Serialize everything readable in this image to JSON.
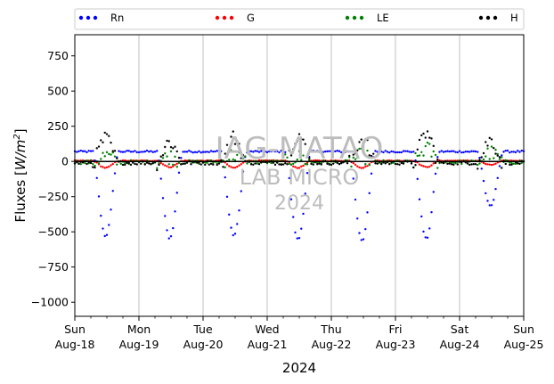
{
  "chart_data": {
    "type": "scatter",
    "xlabel": "2024",
    "ylabel": "Fluxes [W/m²]",
    "ylabel_base": "Fluxes [",
    "ylabel_unit": "W/m",
    "ylabel_exp": "2",
    "ylabel_end": "]",
    "ylim": [
      -1100,
      900
    ],
    "xlim_days": [
      0,
      7
    ],
    "yticks": [
      -1000,
      -750,
      -500,
      -250,
      0,
      250,
      500,
      750
    ],
    "ytick_labels": [
      "−1000",
      "−750",
      "−500",
      "−250",
      "0",
      "250",
      "500",
      "750"
    ],
    "xticks": [
      {
        "day": "Sun",
        "date": "Aug-18"
      },
      {
        "day": "Mon",
        "date": "Aug-19"
      },
      {
        "day": "Tue",
        "date": "Aug-20"
      },
      {
        "day": "Wed",
        "date": "Aug-21"
      },
      {
        "day": "Thu",
        "date": "Aug-22"
      },
      {
        "day": "Fri",
        "date": "Aug-23"
      },
      {
        "day": "Sat",
        "date": "Aug-24"
      },
      {
        "day": "Sun",
        "date": "Aug-25"
      }
    ],
    "grid": "vertical",
    "legend_position": "top",
    "series": [
      {
        "name": "Rn",
        "color": "#0000ff",
        "night": 70,
        "peak": [
          -530,
          -545,
          -525,
          -555,
          -560,
          -550,
          -320
        ]
      },
      {
        "name": "G",
        "color": "#ff0000",
        "night": 5,
        "peak": [
          -45,
          -40,
          -45,
          -45,
          -45,
          -40,
          -25
        ]
      },
      {
        "name": "LE",
        "color": "#008000",
        "night": -5,
        "peak": [
          40,
          35,
          45,
          30,
          40,
          90,
          60
        ]
      },
      {
        "name": "H",
        "color": "#000000",
        "night": -10,
        "peak": [
          160,
          140,
          170,
          190,
          160,
          200,
          150
        ]
      }
    ],
    "watermark": [
      "IAG-MATAO",
      "LAB MICRO",
      "2024"
    ]
  }
}
